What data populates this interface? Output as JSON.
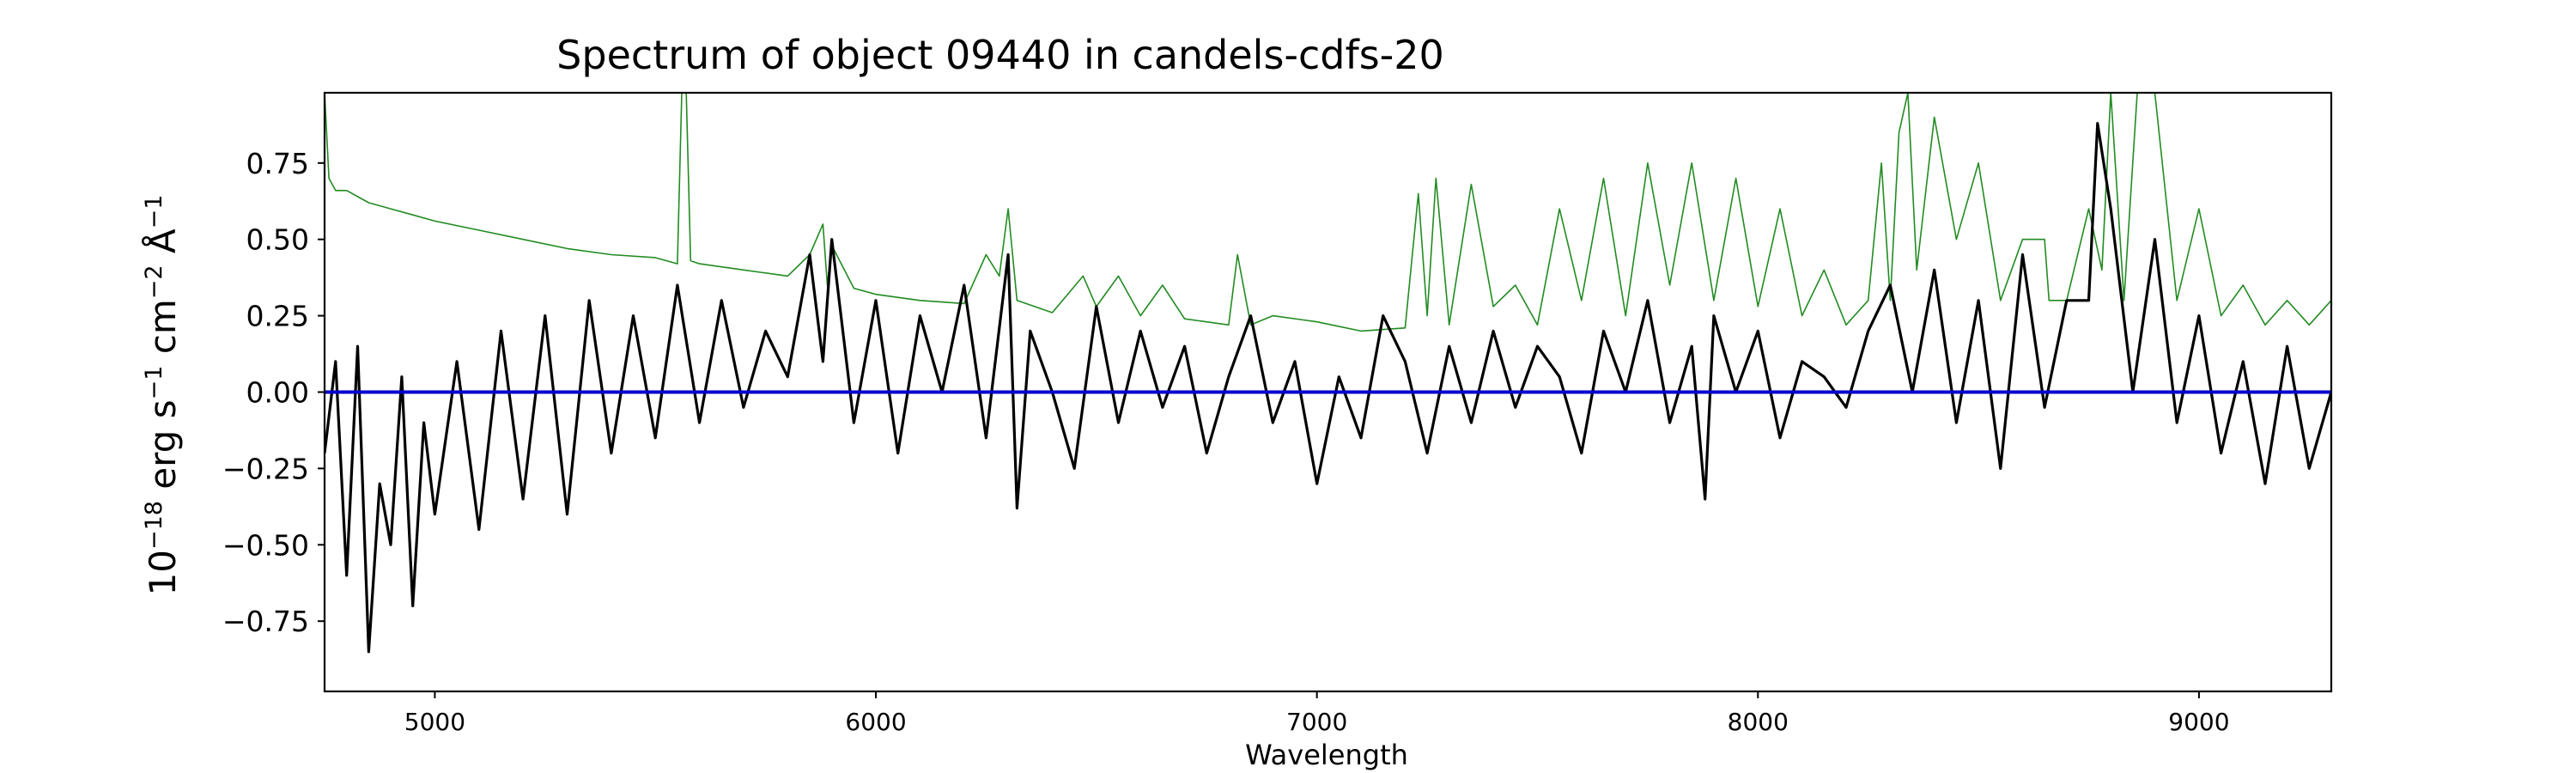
{
  "chart_data": {
    "type": "line",
    "title": "Spectrum of object 09440 in candels-cdfs-20",
    "xlabel": "Wavelength",
    "ylabel": {
      "base": "10",
      "exp": "−18",
      "unit1": "erg s",
      "exp1": "−1",
      "unit2": "cm",
      "exp2": "−2",
      "unit3": "Å",
      "exp3": "−1"
    },
    "xlim": [
      4750,
      9300
    ],
    "ylim": [
      -0.98,
      0.98
    ],
    "x_ticks": [
      5000,
      6000,
      7000,
      8000,
      9000
    ],
    "x_tick_labels": [
      "5000",
      "6000",
      "7000",
      "8000",
      "9000"
    ],
    "y_ticks": [
      -0.75,
      -0.5,
      -0.25,
      0.0,
      0.25,
      0.5,
      0.75
    ],
    "y_tick_labels": [
      "−0.75",
      "−0.50",
      "−0.25",
      "0.00",
      "0.25",
      "0.50",
      "0.75"
    ],
    "grid": false,
    "series": [
      {
        "role": "flux",
        "color": "#000000",
        "x": [
          4750,
          4775,
          4800,
          4825,
          4850,
          4875,
          4900,
          4925,
          4950,
          4975,
          5000,
          5050,
          5100,
          5150,
          5200,
          5250,
          5300,
          5350,
          5400,
          5450,
          5500,
          5550,
          5600,
          5650,
          5700,
          5750,
          5800,
          5850,
          5880,
          5900,
          5950,
          6000,
          6050,
          6100,
          6150,
          6200,
          6250,
          6300,
          6320,
          6350,
          6400,
          6450,
          6500,
          6550,
          6600,
          6650,
          6700,
          6750,
          6800,
          6850,
          6900,
          6950,
          7000,
          7050,
          7100,
          7150,
          7200,
          7250,
          7300,
          7350,
          7400,
          7450,
          7500,
          7550,
          7600,
          7650,
          7700,
          7750,
          7800,
          7850,
          7880,
          7900,
          7950,
          8000,
          8050,
          8100,
          8150,
          8200,
          8250,
          8300,
          8350,
          8400,
          8450,
          8500,
          8550,
          8600,
          8650,
          8700,
          8750,
          8770,
          8800,
          8850,
          8900,
          8950,
          9000,
          9050,
          9100,
          9150,
          9200,
          9250,
          9300
        ],
        "y": [
          -0.2,
          0.1,
          -0.6,
          0.15,
          -0.85,
          -0.3,
          -0.5,
          0.05,
          -0.7,
          -0.1,
          -0.4,
          0.1,
          -0.45,
          0.2,
          -0.35,
          0.25,
          -0.4,
          0.3,
          -0.2,
          0.25,
          -0.15,
          0.35,
          -0.1,
          0.3,
          -0.05,
          0.2,
          0.05,
          0.45,
          0.1,
          0.5,
          -0.1,
          0.3,
          -0.2,
          0.25,
          0.0,
          0.35,
          -0.15,
          0.45,
          -0.38,
          0.2,
          0.0,
          -0.25,
          0.28,
          -0.1,
          0.2,
          -0.05,
          0.15,
          -0.2,
          0.05,
          0.25,
          -0.1,
          0.1,
          -0.3,
          0.05,
          -0.15,
          0.25,
          0.1,
          -0.2,
          0.15,
          -0.1,
          0.2,
          -0.05,
          0.15,
          0.05,
          -0.2,
          0.2,
          0.0,
          0.3,
          -0.1,
          0.15,
          -0.35,
          0.25,
          0.0,
          0.2,
          -0.15,
          0.1,
          0.05,
          -0.05,
          0.2,
          0.35,
          0.0,
          0.4,
          -0.1,
          0.3,
          -0.25,
          0.45,
          -0.05,
          0.3,
          0.3,
          0.88,
          0.6,
          0.0,
          0.5,
          -0.1,
          0.25,
          -0.2,
          0.1,
          -0.3,
          0.15,
          -0.25,
          0.0
        ]
      },
      {
        "role": "noise",
        "color": "#228b22",
        "x": [
          4750,
          4760,
          4775,
          4800,
          4850,
          4900,
          4950,
          5000,
          5100,
          5200,
          5300,
          5400,
          5500,
          5550,
          5560,
          5570,
          5580,
          5600,
          5700,
          5800,
          5850,
          5880,
          5890,
          5900,
          5950,
          6000,
          6100,
          6200,
          6250,
          6280,
          6300,
          6320,
          6400,
          6470,
          6500,
          6550,
          6600,
          6650,
          6700,
          6800,
          6820,
          6850,
          6900,
          7000,
          7100,
          7200,
          7230,
          7250,
          7270,
          7300,
          7350,
          7400,
          7450,
          7500,
          7550,
          7600,
          7650,
          7700,
          7750,
          7800,
          7850,
          7900,
          7950,
          8000,
          8050,
          8100,
          8150,
          8200,
          8250,
          8280,
          8300,
          8320,
          8340,
          8360,
          8400,
          8450,
          8500,
          8550,
          8600,
          8650,
          8660,
          8700,
          8750,
          8780,
          8800,
          8830,
          8860,
          8900,
          8950,
          9000,
          9050,
          9100,
          9150,
          9200,
          9250,
          9300
        ],
        "y": [
          0.98,
          0.7,
          0.66,
          0.66,
          0.62,
          0.6,
          0.58,
          0.56,
          0.53,
          0.5,
          0.47,
          0.45,
          0.44,
          0.42,
          0.98,
          0.98,
          0.43,
          0.42,
          0.4,
          0.38,
          0.45,
          0.55,
          0.35,
          0.48,
          0.34,
          0.32,
          0.3,
          0.29,
          0.45,
          0.38,
          0.6,
          0.3,
          0.26,
          0.38,
          0.28,
          0.38,
          0.25,
          0.35,
          0.24,
          0.22,
          0.45,
          0.22,
          0.25,
          0.23,
          0.2,
          0.21,
          0.65,
          0.25,
          0.7,
          0.22,
          0.68,
          0.28,
          0.35,
          0.22,
          0.6,
          0.3,
          0.7,
          0.25,
          0.75,
          0.35,
          0.75,
          0.3,
          0.7,
          0.28,
          0.6,
          0.25,
          0.4,
          0.22,
          0.3,
          0.75,
          0.3,
          0.85,
          0.98,
          0.4,
          0.9,
          0.5,
          0.75,
          0.3,
          0.5,
          0.5,
          0.3,
          0.3,
          0.6,
          0.4,
          0.98,
          0.3,
          0.98,
          0.98,
          0.3,
          0.6,
          0.25,
          0.35,
          0.22,
          0.3,
          0.22,
          0.3
        ]
      },
      {
        "role": "zero",
        "color": "#0000cc",
        "x": [
          4750,
          9300
        ],
        "y": [
          0.0,
          0.0
        ]
      }
    ]
  }
}
